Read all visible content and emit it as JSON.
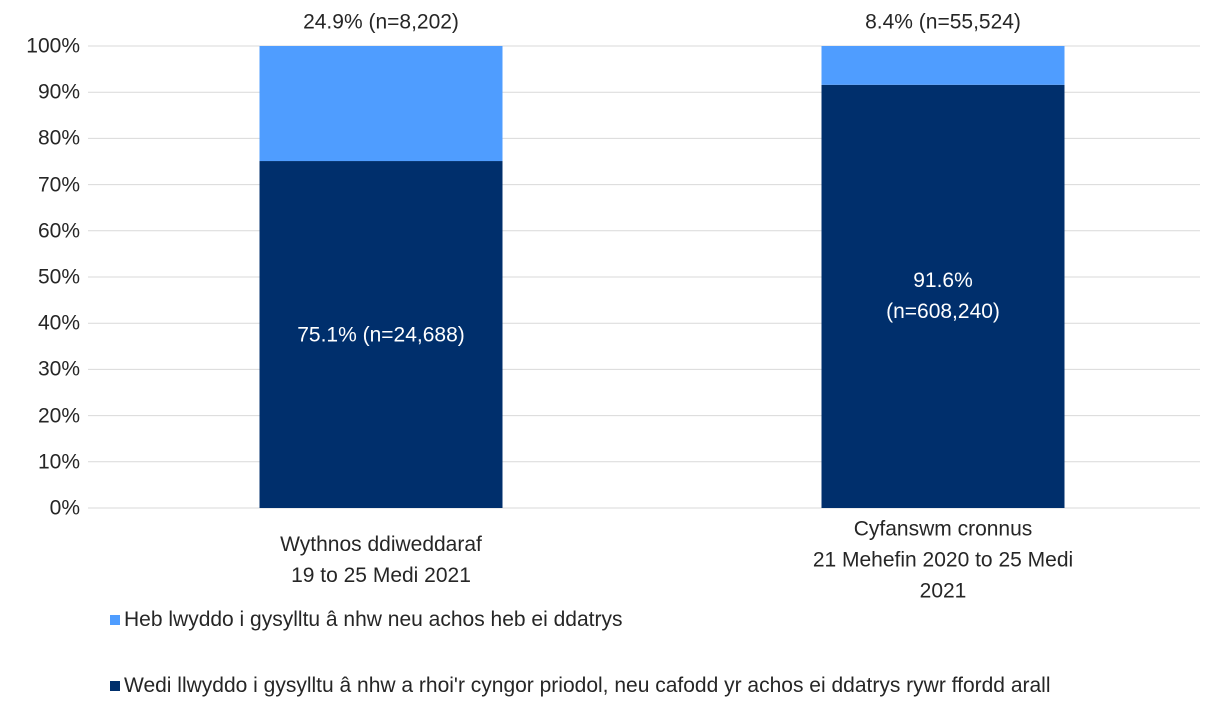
{
  "chart_data": {
    "type": "stacked_bar",
    "categories": [
      "Wythnos ddiweddaraf\n19 to 25 Medi 2021",
      "Cyfanswm cronnus\n21 Mehefin 2020 to 25 Medi 2021"
    ],
    "series": [
      {
        "name": "Wedi llwyddo i gysylltu â nhw a rhoi'r cyngor priodol, neu cafodd yr achos ei ddatrys rywr ffordd arall",
        "color": "#002f6c",
        "values": [
          75.1,
          91.6
        ],
        "value_labels": [
          "75.1% (n=24,688)",
          "91.6%\n(n=608,240)"
        ]
      },
      {
        "name": "Heb lwyddo i gysylltu â nhw neu achos heb ei ddatrys",
        "color": "#4f9dff",
        "values": [
          24.9,
          8.4
        ],
        "value_labels": [
          "24.9% (n=8,202)",
          "8.4% (n=55,524)"
        ]
      }
    ],
    "ylim": [
      0,
      100
    ],
    "yticks": [
      {
        "value": 0,
        "label": "0%"
      },
      {
        "value": 10,
        "label": "10%"
      },
      {
        "value": 20,
        "label": "20%"
      },
      {
        "value": 30,
        "label": "30%"
      },
      {
        "value": 40,
        "label": "40%"
      },
      {
        "value": 50,
        "label": "50%"
      },
      {
        "value": 60,
        "label": "60%"
      },
      {
        "value": 70,
        "label": "70%"
      },
      {
        "value": 80,
        "label": "80%"
      },
      {
        "value": 90,
        "label": "90%"
      },
      {
        "value": 100,
        "label": "100%"
      }
    ],
    "grid": true
  }
}
